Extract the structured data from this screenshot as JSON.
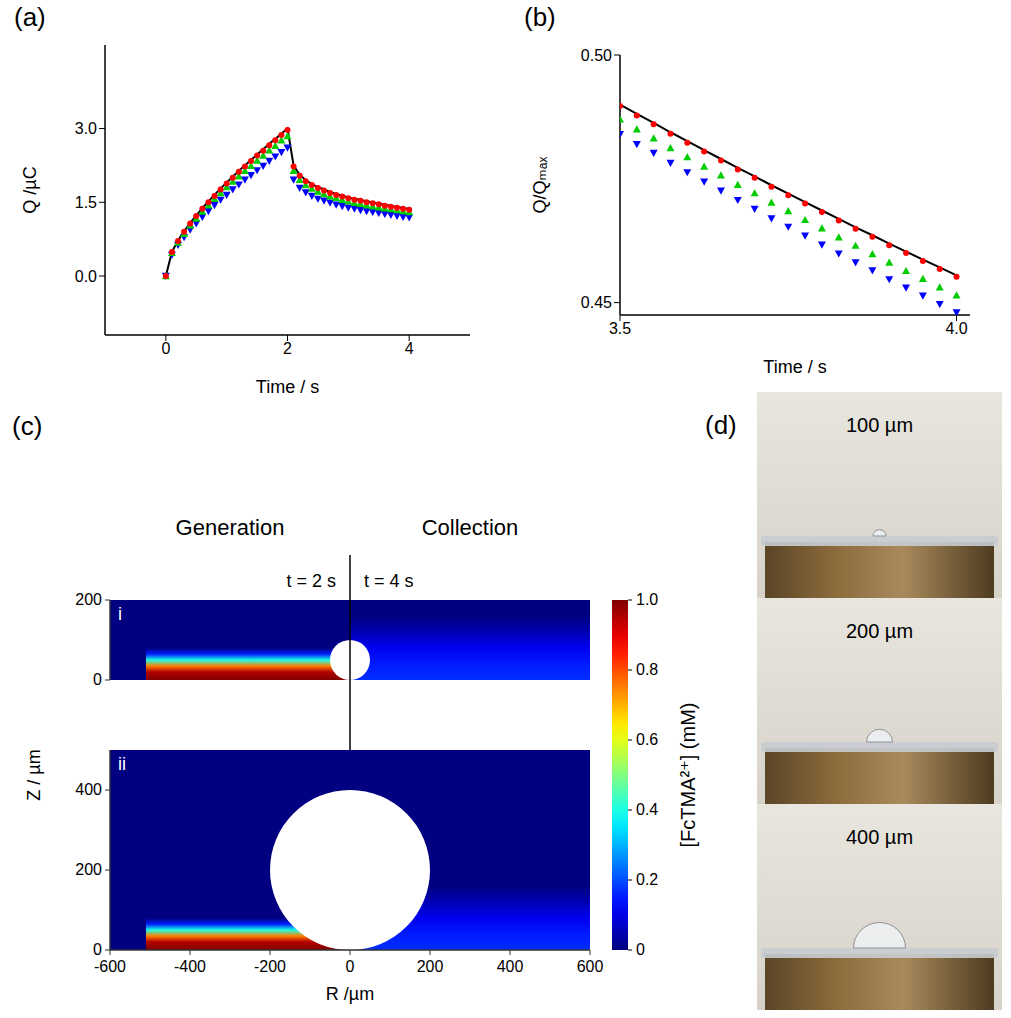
{
  "chart_data": [
    {
      "title": "(a)",
      "type": "line",
      "x_label": "Time / s",
      "y_label": "Q /µC",
      "xlim": [
        -1,
        5
      ],
      "xticks": [
        0,
        2,
        4
      ],
      "ylim": [
        -1.2,
        4.7
      ],
      "yticks": [
        {
          "value": 0,
          "label": "0.0"
        },
        1.5,
        {
          "value": 3,
          "label": "3.0"
        }
      ],
      "x": [
        0,
        0.1,
        0.2,
        0.3,
        0.4,
        0.5,
        0.6,
        0.7,
        0.8,
        0.9,
        1,
        1.1,
        1.2,
        1.3,
        1.4,
        1.5,
        1.6,
        1.7,
        1.8,
        1.9,
        2,
        2.1,
        2.2,
        2.3,
        2.4,
        2.5,
        2.6,
        2.7,
        2.8,
        2.9,
        3,
        3.1,
        3.2,
        3.3,
        3.4,
        3.5,
        3.6,
        3.7,
        3.8,
        3.9,
        4
      ],
      "series": [
        {
          "color": "#000000",
          "line_style": "solid",
          "marker": "none",
          "values": [
            0,
            0.49,
            0.72,
            0.91,
            1.08,
            1.23,
            1.38,
            1.52,
            1.65,
            1.78,
            1.9,
            2.02,
            2.14,
            2.25,
            2.36,
            2.47,
            2.58,
            2.69,
            2.79,
            2.9,
            3,
            2.25,
            2.06,
            1.95,
            1.87,
            1.81,
            1.76,
            1.71,
            1.67,
            1.635,
            1.6,
            1.57,
            1.545,
            1.52,
            1.495,
            1.47,
            1.448,
            1.427,
            1.406,
            1.385,
            1.365
          ]
        },
        {
          "color": "#ff0000",
          "line_style": "none",
          "marker": "circle",
          "values": [
            0,
            0.49,
            0.71,
            0.9,
            1.07,
            1.22,
            1.37,
            1.5,
            1.63,
            1.76,
            1.88,
            2,
            2.12,
            2.23,
            2.34,
            2.45,
            2.55,
            2.66,
            2.76,
            2.87,
            2.97,
            2.23,
            2.04,
            1.93,
            1.85,
            1.79,
            1.74,
            1.69,
            1.65,
            1.62,
            1.58,
            1.55,
            1.53,
            1.5,
            1.48,
            1.46,
            1.43,
            1.41,
            1.39,
            1.37,
            1.35
          ]
        },
        {
          "color": "#00cc00",
          "line_style": "none",
          "marker": "triangle",
          "values": [
            0,
            0.47,
            0.68,
            0.86,
            1.03,
            1.17,
            1.31,
            1.44,
            1.57,
            1.69,
            1.81,
            1.92,
            2.03,
            2.14,
            2.24,
            2.35,
            2.45,
            2.56,
            2.65,
            2.76,
            2.85,
            2.14,
            1.96,
            1.85,
            1.78,
            1.72,
            1.67,
            1.62,
            1.59,
            1.55,
            1.52,
            1.49,
            1.47,
            1.44,
            1.42,
            1.4,
            1.38,
            1.36,
            1.34,
            1.32,
            1.3
          ]
        },
        {
          "color": "#0000ff",
          "line_style": "none",
          "marker": "triangle-down",
          "values": [
            0,
            0.43,
            0.63,
            0.79,
            0.94,
            1.07,
            1.2,
            1.32,
            1.44,
            1.55,
            1.65,
            1.76,
            1.86,
            1.96,
            2.05,
            2.15,
            2.24,
            2.34,
            2.43,
            2.52,
            2.61,
            1.96,
            1.79,
            1.7,
            1.63,
            1.57,
            1.53,
            1.49,
            1.45,
            1.42,
            1.39,
            1.37,
            1.34,
            1.32,
            1.3,
            1.28,
            1.26,
            1.24,
            1.22,
            1.2,
            1.19
          ]
        }
      ]
    },
    {
      "title": "(b)",
      "type": "line",
      "x_label": "Time / s",
      "y_label": "Q/Qₘₐₓ",
      "xlim": [
        3.5,
        4.02
      ],
      "xticks": [
        3.5,
        {
          "value": 4,
          "label": "4.0"
        }
      ],
      "ylim": [
        0.4475,
        0.5
      ],
      "yticks": [
        0.45,
        {
          "value": 0.5,
          "label": "0.50"
        }
      ],
      "x": [
        3.5,
        3.525,
        3.55,
        3.575,
        3.6,
        3.625,
        3.65,
        3.675,
        3.7,
        3.725,
        3.75,
        3.775,
        3.8,
        3.825,
        3.85,
        3.875,
        3.9,
        3.925,
        3.95,
        3.975,
        4
      ],
      "series": [
        {
          "color": "#000000",
          "line_style": "solid",
          "marker": "none",
          "values": [
            0.49,
            0.4881,
            0.4863,
            0.4844,
            0.4826,
            0.4808,
            0.479,
            0.4772,
            0.4755,
            0.4737,
            0.472,
            0.4703,
            0.4686,
            0.4669,
            0.4652,
            0.4636,
            0.4619,
            0.4603,
            0.4587,
            0.4571,
            0.4555
          ]
        },
        {
          "color": "#ff0000",
          "line_style": "none",
          "marker": "circle",
          "values": [
            0.4897,
            0.4878,
            0.486,
            0.4841,
            0.4823,
            0.4805,
            0.4787,
            0.4769,
            0.4752,
            0.4734,
            0.4717,
            0.47,
            0.4683,
            0.4666,
            0.4649,
            0.4633,
            0.4616,
            0.46,
            0.4584,
            0.4568,
            0.4552
          ]
        },
        {
          "color": "#00cc00",
          "line_style": "none",
          "marker": "triangle",
          "values": [
            0.487,
            0.485,
            0.4832,
            0.4812,
            0.4794,
            0.4775,
            0.4757,
            0.4738,
            0.4721,
            0.4702,
            0.4685,
            0.4667,
            0.465,
            0.4632,
            0.4615,
            0.4598,
            0.4581,
            0.4564,
            0.4548,
            0.4531,
            0.4515
          ]
        },
        {
          "color": "#0000ff",
          "line_style": "none",
          "marker": "triangle-down",
          "values": [
            0.484,
            0.482,
            0.4802,
            0.4782,
            0.4763,
            0.4744,
            0.4726,
            0.4707,
            0.4689,
            0.467,
            0.4653,
            0.4635,
            0.4617,
            0.4599,
            0.4581,
            0.4565,
            0.4547,
            0.453,
            0.4514,
            0.4497,
            0.448
          ]
        }
      ]
    },
    {
      "title": "(c)",
      "type": "concentration_map",
      "titles": [
        "Generation",
        "Collection"
      ],
      "times": [
        "t = 2 s",
        "t = 4 s"
      ],
      "x_label": "R /µm",
      "y_label": "Z / µm",
      "xlim": [
        -600,
        600
      ],
      "xticks": [
        -600,
        -400,
        -200,
        0,
        200,
        400,
        600
      ],
      "panels": [
        {
          "label": "i",
          "ylim": [
            0,
            200
          ],
          "yticks": [
            0,
            200
          ],
          "sphere_radius": 50
        },
        {
          "label": "ii",
          "ylim": [
            0,
            500
          ],
          "yticks": [
            0,
            200,
            400
          ],
          "sphere_radius": 200
        }
      ],
      "generation": {
        "r": [
          -510,
          0
        ],
        "z": [
          0,
          20,
          35,
          50,
          65,
          80
        ],
        "c": [
          1,
          0.95,
          0.75,
          0.4,
          0.15,
          0
        ]
      },
      "collection": {
        "r": [
          0,
          600
        ],
        "z": [
          0,
          40,
          80,
          120,
          160
        ],
        "c": [
          0.17,
          0.15,
          0.11,
          0.05,
          0
        ]
      },
      "colorbar": {
        "label": "[FcTMA²⁺] (mM)",
        "range": [
          0,
          1
        ],
        "ticks": [
          0,
          0.2,
          0.4,
          0.6,
          0.8,
          {
            "value": 1,
            "label": "1.0"
          }
        ]
      }
    },
    {
      "title": "(d)",
      "type": "photo",
      "droplets": [
        {
          "value": 100,
          "label": "100 µm"
        },
        {
          "value": 200,
          "label": "200 µm"
        },
        {
          "value": 400,
          "label": "400 µm"
        }
      ]
    }
  ]
}
